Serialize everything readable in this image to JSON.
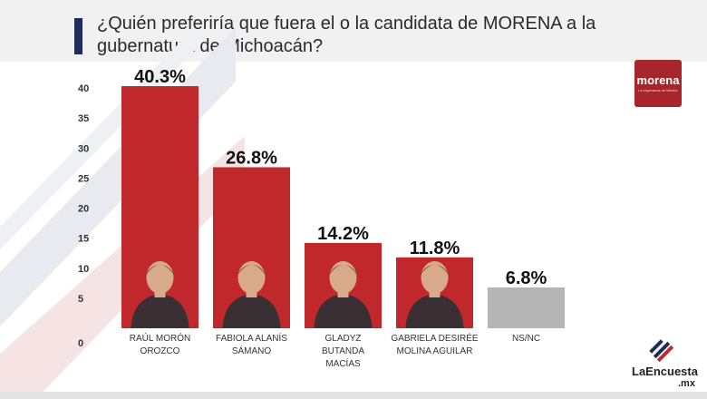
{
  "title": "¿Quién preferiría que fuera el o la candidata de MORENA a la gubernatura de Michoacán?",
  "logo": {
    "word": "morena",
    "tagline": "La esperanza de México"
  },
  "source": {
    "brand": "LaEncuesta",
    "domain": ".mx"
  },
  "colors": {
    "bar": "#c0282c",
    "bar_other": "#b5b5b5",
    "accent": "#1f2d5c",
    "logo_bg": "#a8252b"
  },
  "chart_data": {
    "type": "bar",
    "categories": [
      [
        "RAÚL MORÓN",
        "OROZCO"
      ],
      [
        "FABIOLA ALANÍS",
        "SÁMANO"
      ],
      [
        "GLADYZ",
        "BUTANDA",
        "MACÍAS"
      ],
      [
        "GABRIELA DESIRÉE",
        "MOLINA AGUILAR"
      ],
      [
        "NS/NC"
      ]
    ],
    "values": [
      40.3,
      26.8,
      14.2,
      11.8,
      6.8
    ],
    "data_labels": [
      "40.3%",
      "26.8%",
      "14.2%",
      "11.8%",
      "6.8%"
    ],
    "yticks": [
      "0",
      "5",
      "10",
      "15",
      "20",
      "25",
      "30",
      "35",
      "40"
    ],
    "ylim": [
      0,
      40
    ],
    "grid": false,
    "bar_fill": [
      "#c0282c",
      "#c0282c",
      "#c0282c",
      "#c0282c",
      "#b5b5b5"
    ],
    "photos": [
      "candidate-photo",
      "candidate-photo",
      "candidate-photo",
      "candidate-photo",
      ""
    ]
  }
}
